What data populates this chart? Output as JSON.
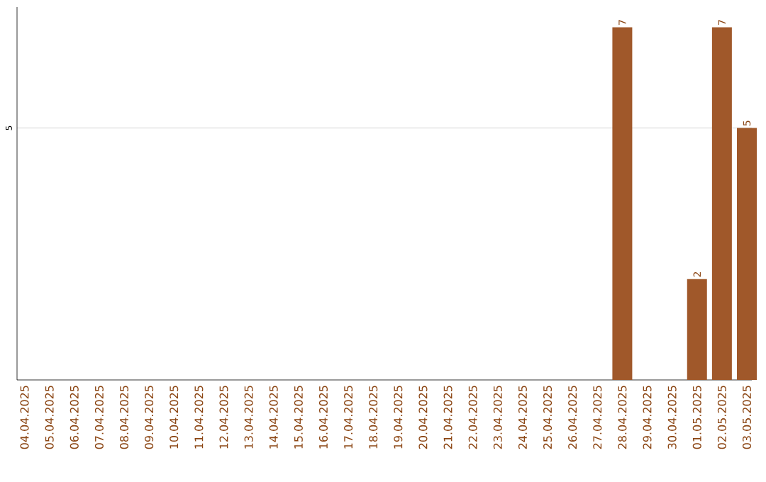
{
  "chart_data": {
    "type": "bar",
    "categories": [
      "04.04.2025",
      "05.04.2025",
      "06.04.2025",
      "07.04.2025",
      "08.04.2025",
      "09.04.2025",
      "10.04.2025",
      "11.04.2025",
      "12.04.2025",
      "13.04.2025",
      "14.04.2025",
      "15.04.2025",
      "16.04.2025",
      "17.04.2025",
      "18.04.2025",
      "19.04.2025",
      "20.04.2025",
      "21.04.2025",
      "22.04.2025",
      "23.04.2025",
      "24.04.2025",
      "25.04.2025",
      "26.04.2025",
      "27.04.2025",
      "28.04.2025",
      "29.04.2025",
      "30.04.2025",
      "01.05.2025",
      "02.05.2025",
      "03.05.2025"
    ],
    "values": [
      null,
      null,
      null,
      null,
      null,
      null,
      null,
      null,
      null,
      null,
      null,
      null,
      null,
      null,
      null,
      null,
      null,
      null,
      null,
      null,
      null,
      null,
      null,
      null,
      7,
      null,
      null,
      2,
      7,
      5
    ],
    "color": "#a0582a",
    "ylim": [
      0,
      7.4
    ],
    "yticks": [
      5
    ],
    "grid": "y",
    "data_labels": true
  }
}
